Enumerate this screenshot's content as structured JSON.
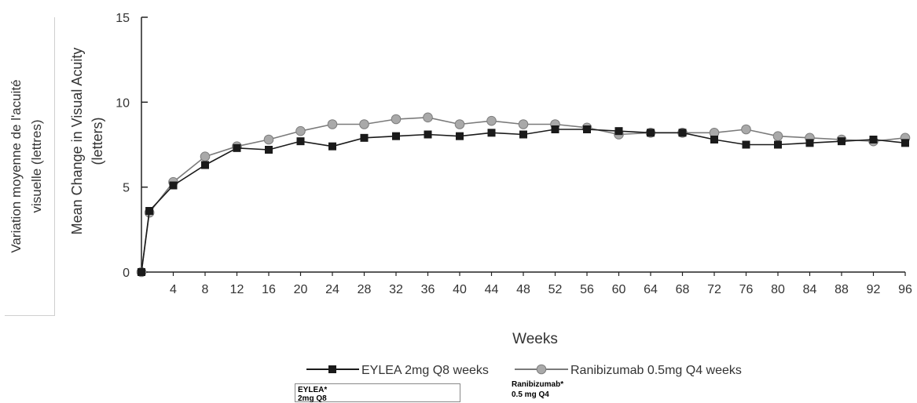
{
  "chart_data": {
    "type": "line",
    "ylabel_fr": "Variation moyenne de l'acuité visuelle (lettres)",
    "ylabel_en": "Mean Change in Visual Acuity (letters)",
    "xlabel": "Weeks",
    "ylim": [
      0,
      15
    ],
    "yticks": [
      0,
      5,
      10,
      15
    ],
    "xlim": [
      0,
      96
    ],
    "xticks": [
      4,
      8,
      12,
      16,
      20,
      24,
      28,
      32,
      36,
      40,
      44,
      48,
      52,
      56,
      60,
      64,
      68,
      72,
      76,
      80,
      84,
      88,
      92,
      96
    ],
    "zero_label": "0",
    "grid": false,
    "legend_position": "bottom",
    "x": [
      0,
      1,
      4,
      8,
      12,
      16,
      20,
      24,
      28,
      32,
      36,
      40,
      44,
      48,
      52,
      56,
      60,
      64,
      68,
      72,
      76,
      80,
      84,
      88,
      92,
      96
    ],
    "series": [
      {
        "name": "EYLEA 2mg Q8 weeks",
        "marker": "square",
        "color": "#1a1a1a",
        "values": [
          0,
          3.6,
          5.1,
          6.3,
          7.3,
          7.2,
          7.7,
          7.4,
          7.9,
          8.0,
          8.1,
          8.0,
          8.2,
          8.1,
          8.4,
          8.4,
          8.3,
          8.2,
          8.2,
          7.8,
          7.5,
          7.5,
          7.6,
          7.7,
          7.8,
          7.6
        ]
      },
      {
        "name": "Ranibizumab 0.5mg Q4 weeks",
        "marker": "circle",
        "color": "#999999",
        "values": [
          0,
          3.5,
          5.3,
          6.8,
          7.4,
          7.8,
          8.3,
          8.7,
          8.7,
          9.0,
          9.1,
          8.7,
          8.9,
          8.7,
          8.7,
          8.5,
          8.1,
          8.2,
          8.2,
          8.2,
          8.4,
          8.0,
          7.9,
          7.8,
          7.7,
          7.9
        ]
      }
    ]
  },
  "fragments": {
    "eylea_line1": "EYLEA*",
    "eylea_line2": "2mg Q8",
    "ranibizumab_line1": "Ranibizumab*",
    "ranibizumab_line2": "0.5 mg Q4"
  }
}
